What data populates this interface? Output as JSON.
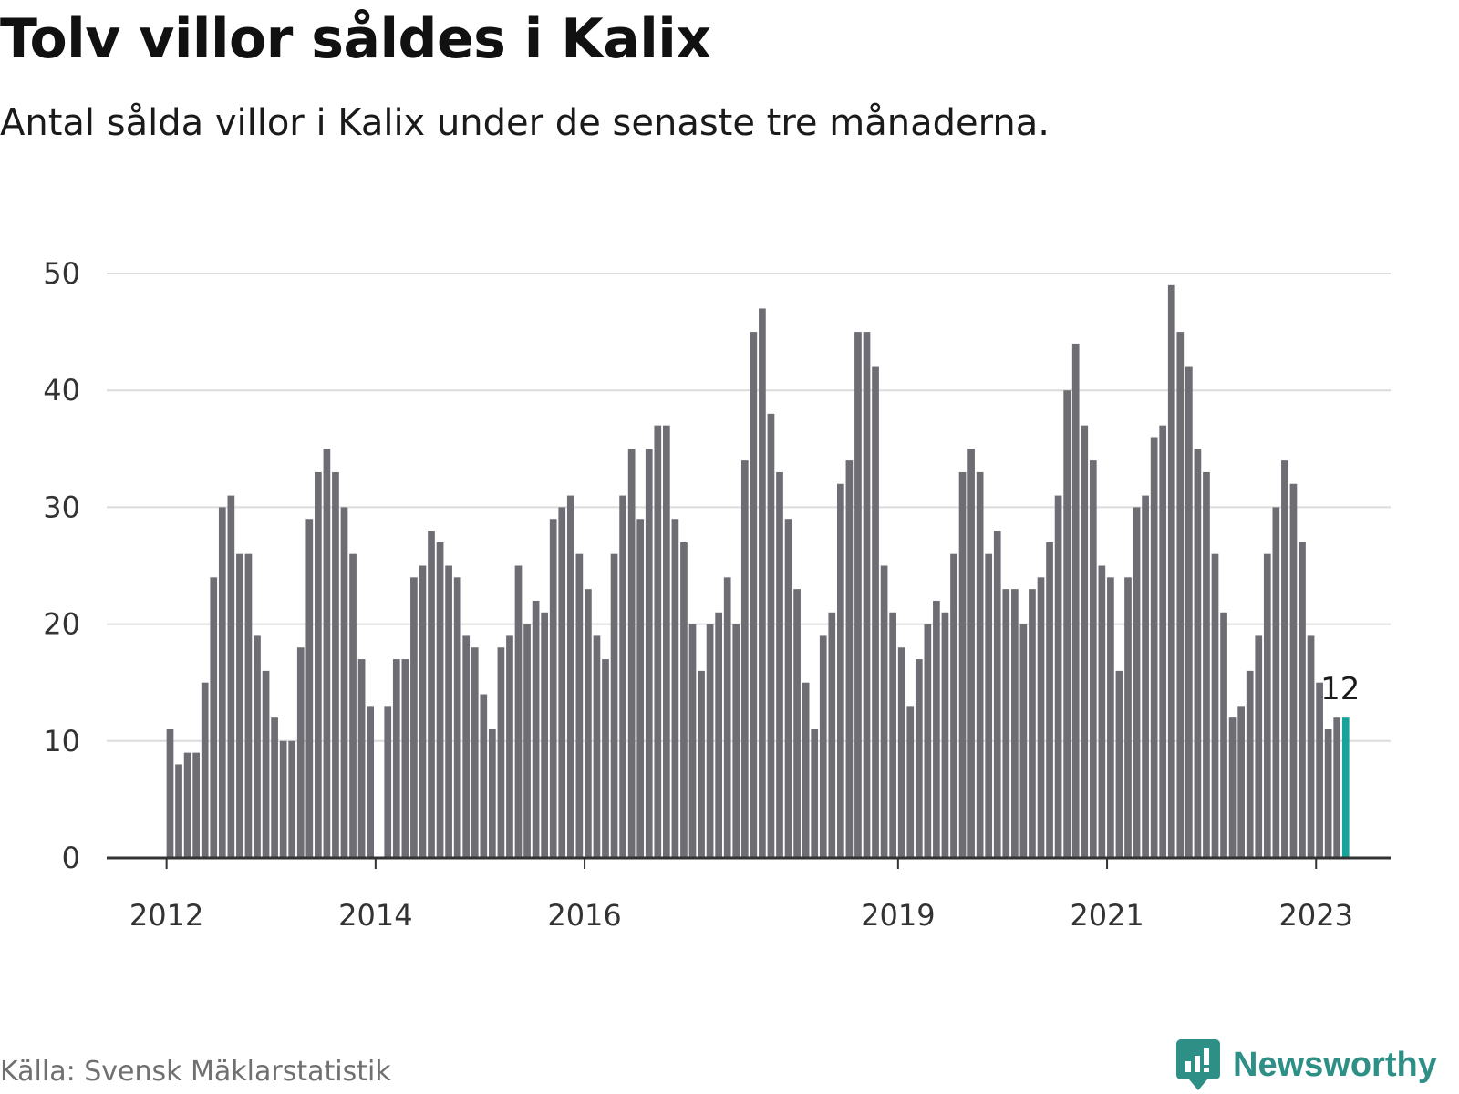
{
  "header": {
    "title": "Tolv villor såldes i Kalix",
    "subtitle": "Antal sålda villor i Kalix under de senaste tre månaderna."
  },
  "footer": {
    "source": "Källa: Svensk Mäklarstatistik",
    "brand": "Newsworthy"
  },
  "colors": {
    "bar": "#6e6d73",
    "highlight": "#16a39a",
    "grid": "#dcdcdc",
    "axis": "#333333",
    "brand": "#2e8f87"
  },
  "chart_data": {
    "type": "bar",
    "ylim": [
      0,
      50
    ],
    "yticks": [
      0,
      10,
      20,
      30,
      40,
      50
    ],
    "grid": true,
    "xticks": [
      {
        "label": "2012",
        "index": 0
      },
      {
        "label": "2014",
        "index": 24
      },
      {
        "label": "2016",
        "index": 48
      },
      {
        "label": "2019",
        "index": 84
      },
      {
        "label": "2021",
        "index": 108
      },
      {
        "label": "2023",
        "index": 132
      }
    ],
    "start_month": "2012-01",
    "values": [
      11,
      8,
      9,
      9,
      15,
      24,
      30,
      31,
      26,
      26,
      19,
      16,
      12,
      10,
      10,
      18,
      29,
      33,
      35,
      33,
      30,
      26,
      17,
      13,
      null,
      13,
      17,
      17,
      24,
      25,
      28,
      27,
      25,
      24,
      19,
      18,
      14,
      11,
      18,
      19,
      25,
      20,
      22,
      21,
      29,
      30,
      31,
      26,
      23,
      19,
      17,
      26,
      31,
      35,
      29,
      35,
      37,
      37,
      29,
      27,
      20,
      16,
      20,
      21,
      24,
      20,
      34,
      45,
      47,
      38,
      33,
      29,
      23,
      15,
      11,
      19,
      21,
      32,
      34,
      45,
      45,
      42,
      25,
      21,
      18,
      13,
      17,
      20,
      22,
      21,
      26,
      33,
      35,
      33,
      26,
      28,
      23,
      23,
      20,
      23,
      24,
      27,
      31,
      40,
      44,
      37,
      34,
      25,
      24,
      16,
      24,
      30,
      31,
      36,
      37,
      49,
      45,
      42,
      35,
      33,
      26,
      21,
      12,
      13,
      16,
      19,
      26,
      30,
      34,
      32,
      27,
      19,
      15,
      11,
      12,
      12
    ],
    "highlight_index": 135,
    "annotation": "12"
  }
}
